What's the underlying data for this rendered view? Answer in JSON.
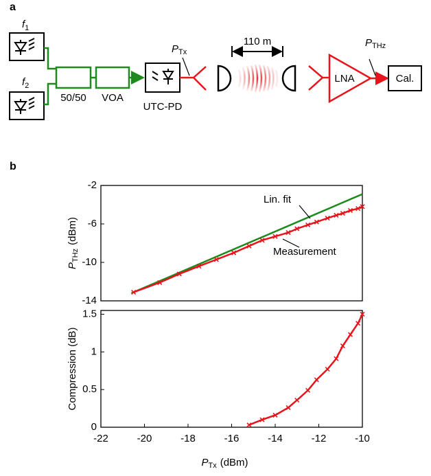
{
  "panel_a": {
    "label": "a",
    "f1": {
      "main": "f",
      "sub": "1"
    },
    "f2": {
      "main": "f",
      "sub": "2"
    },
    "coupler": "50/50",
    "attenuator": "VOA",
    "photodiode": "UTC-PD",
    "p_tx": {
      "main": "P",
      "sub": "Tx"
    },
    "distance": "110 m",
    "amplifier": "LNA",
    "p_thz": {
      "main": "P",
      "sub": "THz"
    },
    "calorimeter": "Cal."
  },
  "panel_b": {
    "label": "b"
  },
  "chart_data": [
    {
      "type": "line",
      "y_label": {
        "main": "P",
        "sub": "THz",
        "unit": "(dBm)"
      },
      "xlim": [
        -22,
        -10
      ],
      "ylim": [
        -14,
        -2
      ],
      "yticks": [
        -14,
        -10,
        -6,
        -2
      ],
      "series": [
        {
          "name": "Lin. fit",
          "color": "#1e8a1e",
          "x": [
            -20.6,
            -10
          ],
          "values": [
            -13.2,
            -2.9
          ]
        },
        {
          "name": "Measurement",
          "color": "#e8141c",
          "marker": "x",
          "x": [
            -20.5,
            -19.3,
            -18.4,
            -17.5,
            -16.7,
            -15.9,
            -15.2,
            -14.6,
            -14.0,
            -13.4,
            -13.0,
            -12.5,
            -12.1,
            -11.6,
            -11.2,
            -10.9,
            -10.55,
            -10.2,
            -10.0
          ],
          "values": [
            -13.1,
            -12.1,
            -11.2,
            -10.4,
            -9.7,
            -9.0,
            -8.3,
            -7.7,
            -7.3,
            -6.9,
            -6.5,
            -6.1,
            -5.8,
            -5.4,
            -5.1,
            -4.9,
            -4.6,
            -4.4,
            -4.2
          ]
        }
      ]
    },
    {
      "type": "line",
      "y_label": "Compression (dB)",
      "x_label": {
        "main": "P",
        "sub": "Tx",
        "unit": "(dBm)"
      },
      "xlim": [
        -22,
        -10
      ],
      "ylim": [
        0,
        1.55
      ],
      "xticks": [
        -22,
        -20,
        -18,
        -16,
        -14,
        -12,
        -10
      ],
      "yticks": [
        0,
        0.5,
        1,
        1.5
      ],
      "series": [
        {
          "color": "#e8141c",
          "marker": "x",
          "x": [
            -15.2,
            -14.6,
            -14.0,
            -13.4,
            -13.0,
            -12.5,
            -12.1,
            -11.6,
            -11.2,
            -10.9,
            -10.55,
            -10.2,
            -10.0
          ],
          "values": [
            0.03,
            0.1,
            0.16,
            0.26,
            0.36,
            0.49,
            0.63,
            0.77,
            0.91,
            1.08,
            1.23,
            1.38,
            1.5
          ]
        }
      ]
    }
  ]
}
